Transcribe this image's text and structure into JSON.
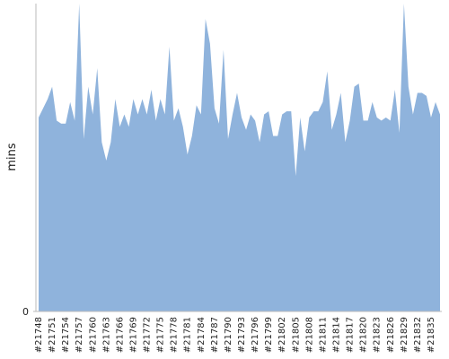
{
  "chart_data": {
    "type": "area",
    "y_label": "mins",
    "color": "#8fb3dc",
    "categories": [
      "#21748",
      null,
      null,
      "#21751",
      null,
      null,
      "#21754",
      null,
      null,
      "#21757",
      null,
      null,
      "#21760",
      null,
      null,
      "#21763",
      null,
      null,
      "#21766",
      null,
      null,
      "#21769",
      null,
      null,
      "#21772",
      null,
      null,
      "#21775",
      null,
      null,
      "#21778",
      null,
      null,
      "#21781",
      null,
      null,
      "#21784",
      null,
      null,
      "#21787",
      null,
      null,
      "#21790",
      null,
      null,
      "#21793",
      null,
      null,
      "#21796",
      null,
      null,
      "#21799",
      null,
      null,
      "#21802",
      null,
      null,
      "#21805",
      null,
      null,
      "#21808",
      null,
      null,
      "#21811",
      null,
      null,
      "#21814",
      null,
      null,
      "#21817",
      null,
      null,
      "#21820",
      null,
      null,
      "#21823",
      null,
      null,
      "#21826",
      null,
      null,
      "#21829",
      null,
      null,
      "#21832",
      null,
      null,
      "#21835",
      null,
      null
    ],
    "values": [
      63,
      66,
      69,
      73,
      62,
      61,
      61,
      68,
      62,
      100,
      56,
      73,
      64,
      79,
      55,
      49,
      55,
      69,
      60,
      64,
      60,
      69,
      64,
      69,
      64,
      72,
      62,
      69,
      64,
      86,
      62,
      66,
      60,
      51,
      57,
      67,
      64,
      95,
      87,
      66,
      61,
      85,
      56,
      64,
      71,
      63,
      59,
      64,
      62,
      55,
      64,
      65,
      57,
      57,
      64,
      65,
      65,
      44,
      63,
      52,
      63,
      65,
      65,
      68,
      78,
      59,
      64,
      71,
      55,
      62,
      73,
      74,
      62,
      62,
      68,
      63,
      62,
      63,
      62,
      72,
      58,
      100,
      73,
      64,
      71,
      71,
      70,
      63,
      68,
      64
    ],
    "ylim": [
      0,
      100
    ],
    "yticks": [
      0
    ]
  }
}
